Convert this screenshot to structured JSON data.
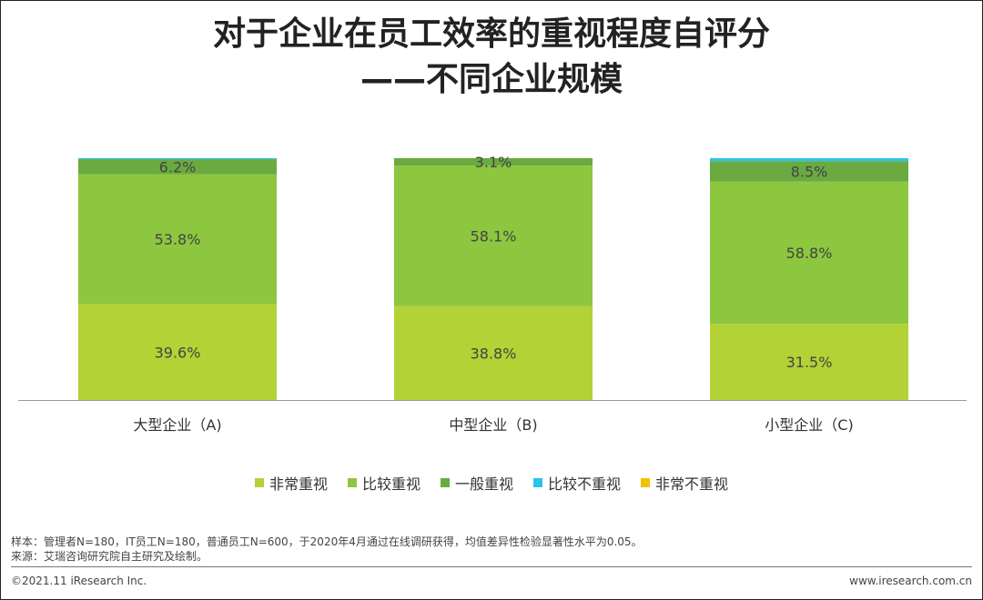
{
  "title_line1": "对于企业在员工效率的重视程度自评分",
  "title_line2": "——不同企业规模",
  "chart_data": {
    "type": "bar",
    "stacked": true,
    "categories": [
      "大型企业（A)",
      "中型企业（B)",
      "小型企业（C)"
    ],
    "series": [
      {
        "name": "非常重视",
        "color": "#b2d235",
        "values": [
          39.6,
          38.8,
          31.5
        ],
        "labels": [
          "39.6%",
          "38.8%",
          "31.5%"
        ]
      },
      {
        "name": "比较重视",
        "color": "#8dc63f",
        "values": [
          53.8,
          58.1,
          58.8
        ],
        "labels": [
          "53.8%",
          "58.1%",
          "58.8%"
        ]
      },
      {
        "name": "一般重视",
        "color": "#6aaa41",
        "values": [
          6.2,
          3.1,
          8.5
        ],
        "labels": [
          "6.2%",
          "3.1%",
          "8.5%"
        ]
      },
      {
        "name": "比较不重视",
        "color": "#29c4e8",
        "values": [
          0.4,
          0.0,
          1.2
        ],
        "labels": [
          "",
          "",
          ""
        ]
      },
      {
        "name": "非常不重视",
        "color": "#f2c200",
        "values": [
          0,
          0,
          0
        ],
        "labels": [
          "",
          "",
          ""
        ]
      }
    ],
    "ylim": [
      0,
      100
    ],
    "legend_position": "bottom",
    "grid": false
  },
  "notes": {
    "sample": "样本：管理者N=180，IT员工N=180，普通员工N=600，于2020年4月通过在线调研获得，均值差异性检验显著性水平为0.05。",
    "source": "来源：艾瑞咨询研究院自主研究及绘制。"
  },
  "footer": {
    "copyright": "©2021.11 iResearch Inc.",
    "website": "www.iresearch.com.cn"
  }
}
